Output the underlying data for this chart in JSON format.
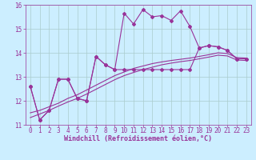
{
  "background_color": "#cceeff",
  "grid_color": "#aacccc",
  "line_color": "#993399",
  "x_hours": [
    0,
    1,
    2,
    3,
    4,
    5,
    6,
    7,
    8,
    9,
    10,
    11,
    12,
    13,
    14,
    15,
    16,
    17,
    18,
    19,
    20,
    21,
    22,
    23
  ],
  "windchill_line": [
    12.6,
    11.2,
    11.6,
    12.9,
    12.9,
    12.1,
    12.0,
    13.85,
    13.5,
    13.3,
    15.65,
    15.2,
    15.8,
    15.5,
    15.55,
    15.35,
    15.75,
    15.1,
    14.2,
    14.3,
    14.25,
    14.1,
    13.75,
    13.75
  ],
  "temp_line": [
    12.6,
    11.2,
    11.6,
    12.9,
    12.9,
    12.1,
    12.0,
    13.85,
    13.5,
    13.3,
    13.3,
    13.3,
    13.3,
    13.3,
    13.3,
    13.3,
    13.3,
    13.3,
    14.2,
    14.3,
    14.25,
    14.1,
    13.75,
    13.75
  ],
  "smooth_line1": [
    11.5,
    11.6,
    11.75,
    11.9,
    12.1,
    12.25,
    12.45,
    12.65,
    12.85,
    13.05,
    13.2,
    13.35,
    13.45,
    13.55,
    13.62,
    13.68,
    13.73,
    13.78,
    13.85,
    13.92,
    14.0,
    13.97,
    13.8,
    13.78
  ],
  "smooth_line2": [
    11.3,
    11.45,
    11.6,
    11.78,
    11.95,
    12.1,
    12.28,
    12.48,
    12.68,
    12.88,
    13.05,
    13.18,
    13.3,
    13.4,
    13.5,
    13.57,
    13.63,
    13.68,
    13.75,
    13.82,
    13.9,
    13.87,
    13.7,
    13.68
  ],
  "ylim": [
    11.0,
    16.0
  ],
  "yticks": [
    11,
    12,
    13,
    14,
    15,
    16
  ],
  "xtick_labels": [
    "0",
    "1",
    "2",
    "3",
    "4",
    "5",
    "6",
    "7",
    "8",
    "9",
    "10",
    "11",
    "12",
    "13",
    "14",
    "15",
    "16",
    "17",
    "18",
    "19",
    "20",
    "21",
    "22",
    "23"
  ],
  "xlabel": "Windchill (Refroidissement éolien,°C)",
  "marker": "D",
  "markersize": 2.0,
  "linewidth": 0.8,
  "xlabel_fontsize": 6.0,
  "tick_fontsize": 5.5
}
